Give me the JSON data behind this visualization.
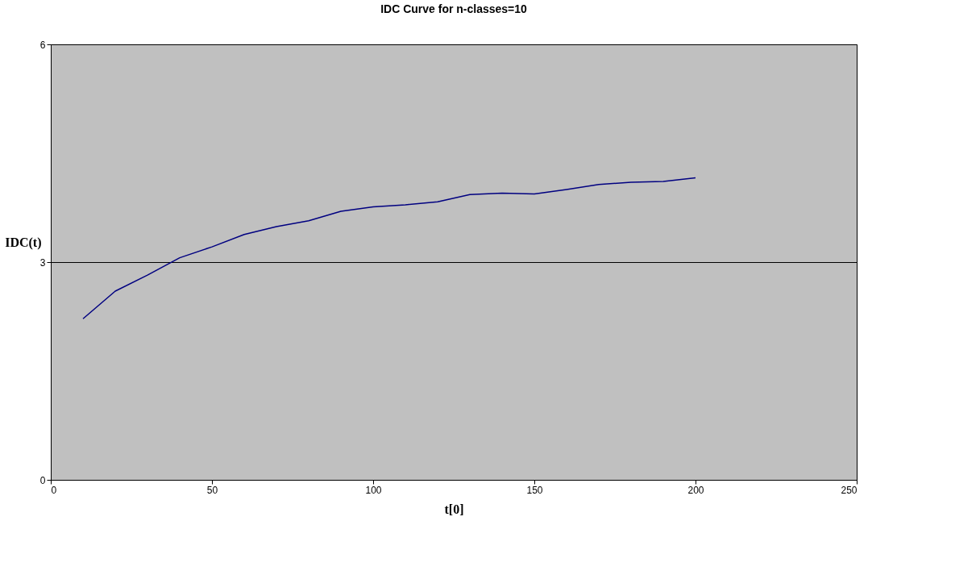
{
  "chart_data": {
    "type": "line",
    "title": "IDC Curve for n-classes=10",
    "xlabel": "t[0]",
    "ylabel": "IDC(t)",
    "x": [
      10,
      20,
      30,
      40,
      50,
      60,
      70,
      80,
      90,
      100,
      110,
      120,
      130,
      140,
      150,
      160,
      170,
      180,
      190,
      200
    ],
    "series": [
      {
        "color": "#000080",
        "values": [
          2.22,
          2.6,
          2.82,
          3.06,
          3.21,
          3.38,
          3.49,
          3.57,
          3.7,
          3.76,
          3.79,
          3.83,
          3.93,
          3.95,
          3.94,
          4.0,
          4.07,
          4.1,
          4.11,
          4.16
        ]
      }
    ],
    "xlim": [
      0,
      250
    ],
    "xticks": [
      0,
      50,
      100,
      150,
      200,
      250
    ],
    "ylim": [
      0,
      6
    ],
    "yticks": [
      0,
      3,
      6
    ],
    "grid": "y",
    "marker": "none",
    "line_style": "solid"
  }
}
